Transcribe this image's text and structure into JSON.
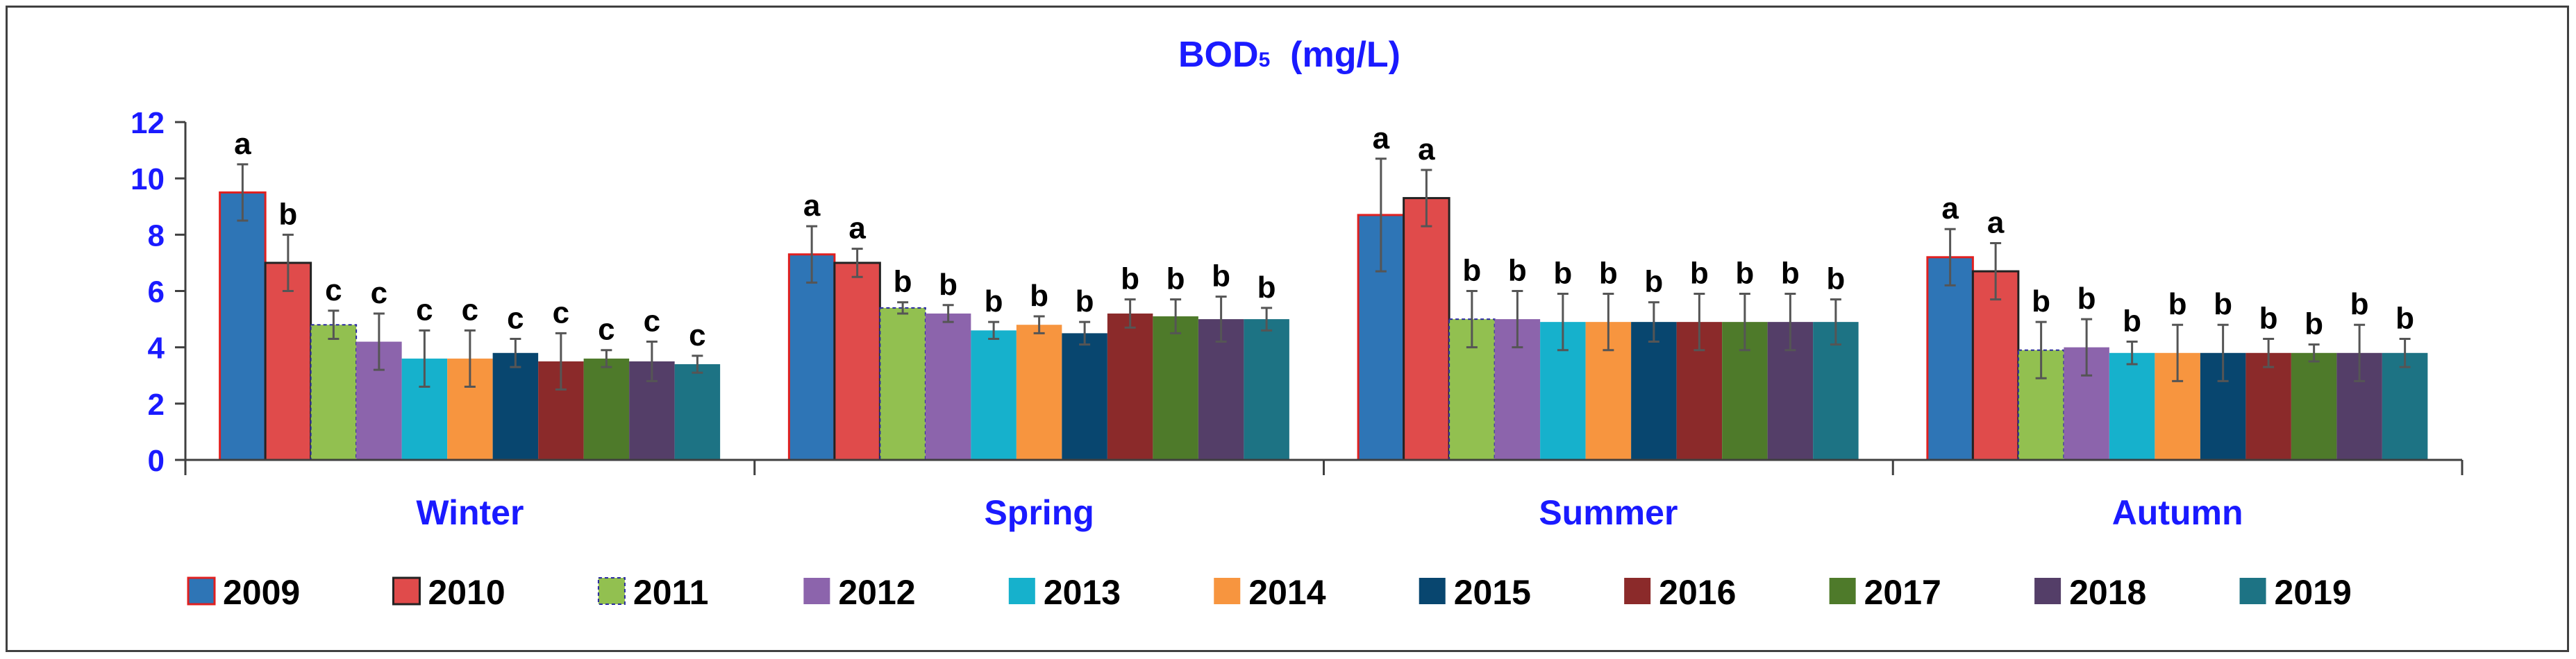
{
  "chart_data": {
    "type": "bar",
    "title": {
      "prefix": "BOD",
      "subscript": "5",
      "suffix": "  (mg/L)"
    },
    "xlabel": "",
    "ylabel": "",
    "ylim": [
      0,
      12
    ],
    "yticks": [
      "0",
      "2",
      "4",
      "6",
      "8",
      "10",
      "12"
    ],
    "grid": false,
    "legend_position": "bottom",
    "categories": [
      "Winter",
      "Spring",
      "Summer",
      "Autumn"
    ],
    "series": [
      {
        "name": "2009",
        "color": "#2e75b6",
        "values": [
          9.5,
          7.3,
          8.7,
          7.2
        ],
        "errors": [
          1.0,
          1.0,
          2.0,
          1.0
        ],
        "letters": [
          "a",
          "a",
          "a",
          "a"
        ]
      },
      {
        "name": "2010",
        "color": "#e04b4b",
        "values": [
          7.0,
          7.0,
          9.3,
          6.7
        ],
        "errors": [
          1.0,
          0.5,
          1.0,
          1.0
        ],
        "letters": [
          "b",
          "a",
          "a",
          "a"
        ]
      },
      {
        "name": "2011",
        "color": "#92c050",
        "values": [
          4.8,
          5.4,
          5.0,
          3.9
        ],
        "errors": [
          0.5,
          0.2,
          1.0,
          1.0
        ],
        "letters": [
          "c",
          "b",
          "b",
          "b"
        ]
      },
      {
        "name": "2012",
        "color": "#8c64ac",
        "values": [
          4.2,
          5.2,
          5.0,
          4.0
        ],
        "errors": [
          1.0,
          0.3,
          1.0,
          1.0
        ],
        "letters": [
          "c",
          "b",
          "b",
          "b"
        ]
      },
      {
        "name": "2013",
        "color": "#16b1cc",
        "values": [
          3.6,
          4.6,
          4.9,
          3.8
        ],
        "errors": [
          1.0,
          0.3,
          1.0,
          0.4
        ],
        "letters": [
          "c",
          "b",
          "b",
          "b"
        ]
      },
      {
        "name": "2014",
        "color": "#f7953f",
        "values": [
          3.6,
          4.8,
          4.9,
          3.8
        ],
        "errors": [
          1.0,
          0.3,
          1.0,
          1.0
        ],
        "letters": [
          "c",
          "b",
          "b",
          "b"
        ]
      },
      {
        "name": "2015",
        "color": "#08466f",
        "values": [
          3.8,
          4.5,
          4.9,
          3.8
        ],
        "errors": [
          0.5,
          0.4,
          0.7,
          1.0
        ],
        "letters": [
          "c",
          "b",
          "b",
          "b"
        ]
      },
      {
        "name": "2016",
        "color": "#8b2a2a",
        "values": [
          3.5,
          5.2,
          4.9,
          3.8
        ],
        "errors": [
          1.0,
          0.5,
          1.0,
          0.5
        ],
        "letters": [
          "c",
          "b",
          "b",
          "b"
        ]
      },
      {
        "name": "2017",
        "color": "#4e7a2a",
        "values": [
          3.6,
          5.1,
          4.9,
          3.8
        ],
        "errors": [
          0.3,
          0.6,
          1.0,
          0.3
        ],
        "letters": [
          "c",
          "b",
          "b",
          "b"
        ]
      },
      {
        "name": "2018",
        "color": "#543e68",
        "values": [
          3.5,
          5.0,
          4.9,
          3.8
        ],
        "errors": [
          0.7,
          0.8,
          1.0,
          1.0
        ],
        "letters": [
          "c",
          "b",
          "b",
          "b"
        ]
      },
      {
        "name": "2019",
        "color": "#1d7384",
        "values": [
          3.4,
          5.0,
          4.9,
          3.8
        ],
        "errors": [
          0.3,
          0.4,
          0.8,
          0.5
        ],
        "letters": [
          "c",
          "b",
          "b",
          "b"
        ]
      }
    ],
    "colors": {
      "title": "#1a1aff",
      "axis_labels": "#1a1aff",
      "axis": "#404040",
      "letters": "#000000",
      "frame": "#404040"
    }
  }
}
